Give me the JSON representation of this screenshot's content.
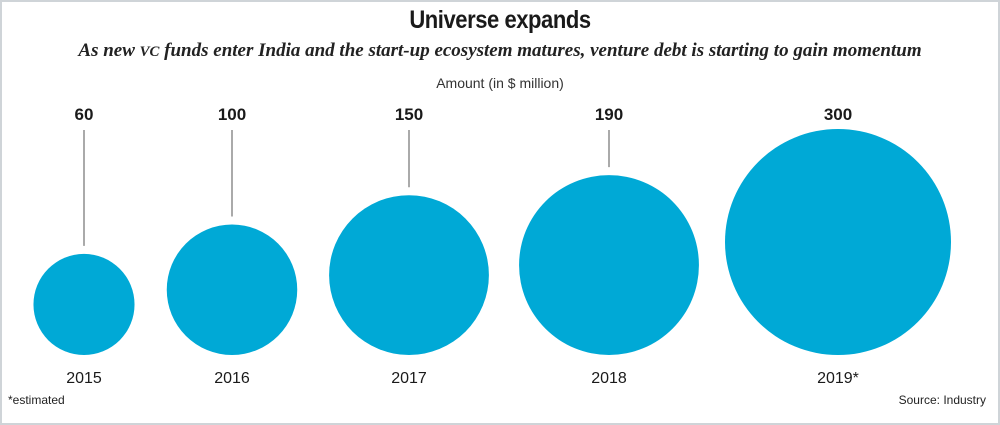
{
  "title": "Universe expands",
  "subtitle": "As new VC funds enter India and the start-up ecosystem matures, venture debt is starting to gain momentum",
  "unit_label": "Amount (in $ million)",
  "footnote": "*estimated",
  "source": "Source: Industry",
  "colors": {
    "bubble": "#00a9d6",
    "leader": "#555555",
    "text": "#1a1a1a"
  },
  "chart_data": {
    "type": "bubble",
    "categories": [
      "2015",
      "2016",
      "2017",
      "2018",
      "2019*"
    ],
    "values": [
      60,
      100,
      150,
      190,
      300
    ],
    "value_labels": [
      "60",
      "100",
      "150",
      "190",
      "300"
    ],
    "ylabel": "Amount (in $ million)",
    "legend": "none",
    "grid": false
  }
}
